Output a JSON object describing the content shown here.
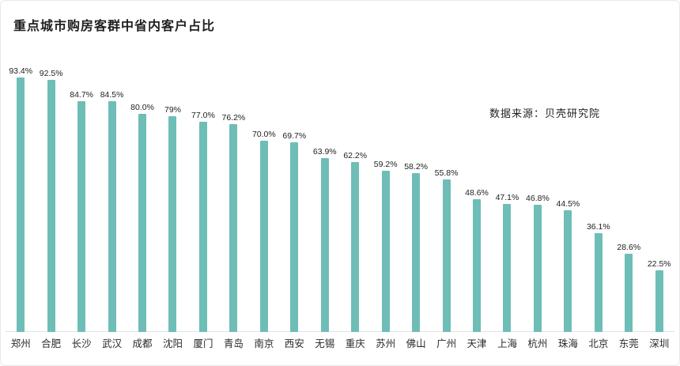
{
  "header": {
    "title": "重点城市购房客群中省内客户占比",
    "source": "数据来源：贝壳研究院"
  },
  "chart_data": {
    "type": "bar",
    "title": "重点城市购房客群中省内客户占比",
    "source": "数据来源：贝壳研究院",
    "categories": [
      "郑州",
      "合肥",
      "长沙",
      "武汉",
      "成都",
      "沈阳",
      "厦门",
      "青岛",
      "南京",
      "西安",
      "无锡",
      "重庆",
      "苏州",
      "佛山",
      "广州",
      "天津",
      "上海",
      "杭州",
      "珠海",
      "北京",
      "东莞",
      "深圳"
    ],
    "values": [
      93.4,
      92.5,
      84.7,
      84.5,
      80.0,
      79,
      77.0,
      76.2,
      70.0,
      69.7,
      63.9,
      62.2,
      59.2,
      58.2,
      55.8,
      48.6,
      47.1,
      46.8,
      44.5,
      36.1,
      28.6,
      22.5
    ],
    "labels": [
      "93.4%",
      "92.5%",
      "84.7%",
      "84.5%",
      "80.0%",
      "79%",
      "77.0%",
      "76.2%",
      "70.0%",
      "69.7%",
      "63.9%",
      "62.2%",
      "59.2%",
      "58.2%",
      "55.8%",
      "48.6%",
      "47.1%",
      "46.8%",
      "44.5%",
      "36.1%",
      "28.6%",
      "22.5%"
    ],
    "bar_color": "#6fbdb7",
    "ylim": [
      0,
      100
    ],
    "xlabel": "",
    "ylabel": "",
    "grid": false,
    "legend": "none"
  }
}
